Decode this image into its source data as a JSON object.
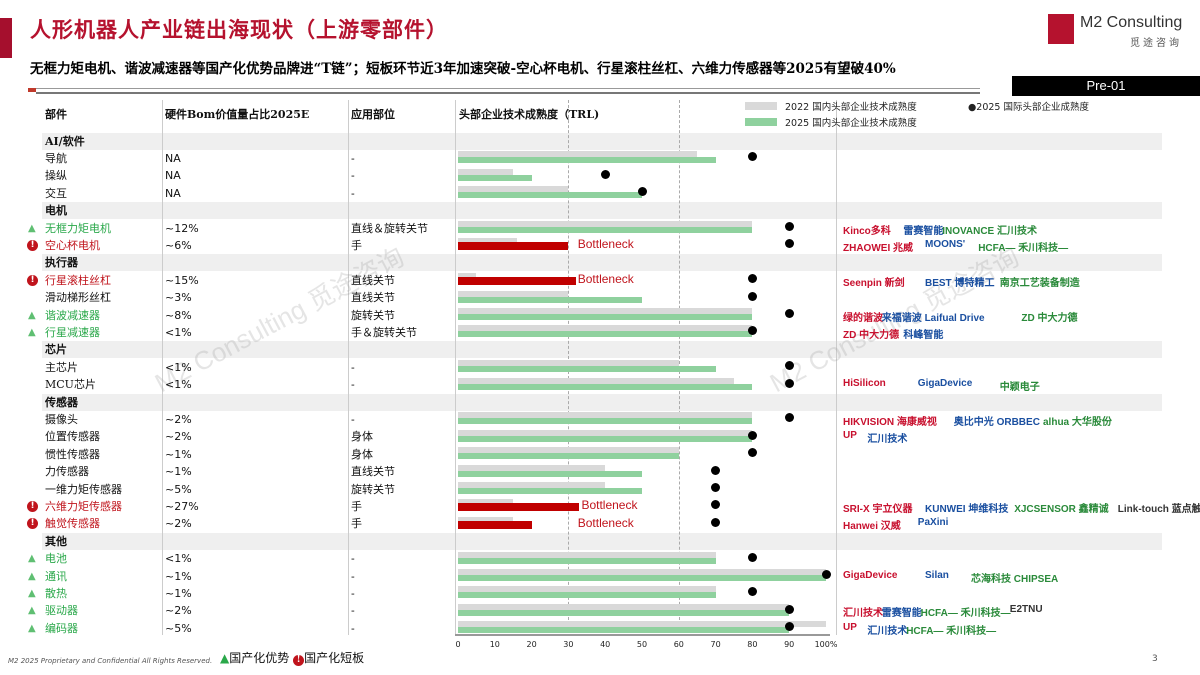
{
  "header": {
    "title": "人形机器人产业链出海现状（上游零部件）",
    "subtitle": "无框力矩电机、谐波减速器等国产化优势品牌进“T链”；短板环节近3年加速突破-空心杯电机、行星滚柱丝杠、六维力传感器等2025有望破40%",
    "brand_name": "M2 Consulting",
    "brand_cn": "觅途咨询",
    "slide_code": "Pre-01"
  },
  "table": {
    "columns": [
      "部件",
      "硬件Bom价值量占比2025E",
      "应用部位",
      "头部企业技术成熟度（TRL)"
    ]
  },
  "legend": {
    "gray": "2022 国内头部企业技术成熟度",
    "green": "2025 国内头部企业技术成熟度",
    "dot": "●2025 国际头部企业成熟度",
    "advantage": "国产化优势",
    "bottleneck": "国产化短板"
  },
  "colors": {
    "gray": "#d9d9d9",
    "green": "#8fd19e",
    "red": "#c00000",
    "dot": "#000000",
    "advantage": "#2aa84a",
    "bottleneck": "#c0141c",
    "brand": "#b5122e"
  },
  "bottleneck_label": "Bottleneck",
  "chart_data": {
    "type": "bar",
    "xlabel": "",
    "xlim": [
      0,
      100
    ],
    "x_ticks": [
      "0",
      "10",
      "20",
      "30",
      "40",
      "50",
      "60",
      "70",
      "80",
      "90",
      "100%"
    ],
    "gridlines": [
      30,
      60
    ]
  },
  "rows": [
    {
      "section": "AI/软件"
    },
    {
      "name": "导航",
      "bom": "NA",
      "pos": "-",
      "trl2022": 65,
      "trl2025": 70,
      "intl2025": 80
    },
    {
      "name": "操纵",
      "bom": "NA",
      "pos": "-",
      "trl2022": 15,
      "trl2025": 20,
      "intl2025": 40
    },
    {
      "name": "交互",
      "bom": "NA",
      "pos": "-",
      "trl2022": 30,
      "trl2025": 50,
      "intl2025": 50
    },
    {
      "section": "电机"
    },
    {
      "name": "无框力矩电机",
      "bom": "~12%",
      "pos": "直线＆旋转关节",
      "status": "advantage",
      "trl2022": 80,
      "trl2025": 80,
      "intl2025": 90,
      "logos": [
        "Kinco多科",
        "雷赛智能",
        "INOVANCE 汇川技术"
      ]
    },
    {
      "name": "空心杯电机",
      "bom": "~6%",
      "pos": "手",
      "status": "bottleneck",
      "trl2022": 16,
      "trl2025": 30,
      "intl2025": 90,
      "logos": [
        "ZHAOWEI 兆威",
        "MOONS'",
        "HCFA— 禾川科技—"
      ]
    },
    {
      "section": "执行器"
    },
    {
      "name": "行星滚柱丝杠",
      "bom": "~15%",
      "pos": "直线关节",
      "status": "bottleneck",
      "trl2022": 5,
      "trl2025": 32,
      "intl2025": 80,
      "logos": [
        "Seenpin 新剑",
        "BEST 博特精工",
        "南京工艺装备制造"
      ]
    },
    {
      "name": "滑动梯形丝杠",
      "bom": "~3%",
      "pos": "直线关节",
      "trl2022": 30,
      "trl2025": 50,
      "intl2025": 80
    },
    {
      "name": "谐波减速器",
      "bom": "~8%",
      "pos": "旋转关节",
      "status": "advantage",
      "trl2022": 80,
      "trl2025": 80,
      "intl2025": 90,
      "logos": [
        "绿的谐波",
        "来福谐波 Laifual Drive",
        "ZD 中大力德"
      ]
    },
    {
      "name": "行星减速器",
      "bom": "<1%",
      "pos": "手＆旋转关节",
      "status": "advantage",
      "trl2022": 80,
      "trl2025": 80,
      "intl2025": 80,
      "logos": [
        "ZD 中大力德",
        "科峰智能"
      ]
    },
    {
      "section": "芯片"
    },
    {
      "name": "主芯片",
      "bom": "<1%",
      "pos": "-",
      "trl2022": 60,
      "trl2025": 70,
      "intl2025": 90
    },
    {
      "name": "MCU芯片",
      "bom": "<1%",
      "pos": "-",
      "trl2022": 75,
      "trl2025": 80,
      "intl2025": 90,
      "logos": [
        "HiSilicon",
        "GigaDevice",
        "中颖电子"
      ]
    },
    {
      "section": "传感器"
    },
    {
      "name": "摄像头",
      "bom": "~2%",
      "pos": "-",
      "trl2022": 80,
      "trl2025": 80,
      "intl2025": 90,
      "logos": [
        "HIKVISION 海康威视",
        "奥比中光 ORBBEC",
        "alhua 大华股份"
      ]
    },
    {
      "name": "位置传感器",
      "bom": "~2%",
      "pos": "身体",
      "trl2022": 80,
      "trl2025": 80,
      "intl2025": 80,
      "logos": [
        "UP",
        "汇川技术"
      ]
    },
    {
      "name": "惯性传感器",
      "bom": "~1%",
      "pos": "身体",
      "trl2022": 60,
      "trl2025": 60,
      "intl2025": 80
    },
    {
      "name": "力传感器",
      "bom": "~1%",
      "pos": "直线关节",
      "trl2022": 40,
      "trl2025": 50,
      "intl2025": 70
    },
    {
      "name": "一维力矩传感器",
      "bom": "~5%",
      "pos": "旋转关节",
      "trl2022": 40,
      "trl2025": 50,
      "intl2025": 70
    },
    {
      "name": "六维力矩传感器",
      "bom": "~27%",
      "pos": "手",
      "status": "bottleneck",
      "trl2022": 15,
      "trl2025": 33,
      "intl2025": 70,
      "logos": [
        "SRI-X 宇立仪器",
        "KUNWEI 坤维科技",
        "XJCSENSOR 鑫精诚",
        "Link-touch 蓝点触控"
      ]
    },
    {
      "name": "触觉传感器",
      "bom": "~2%",
      "pos": "手",
      "status": "bottleneck",
      "trl2022": 15,
      "trl2025": 20,
      "intl2025": 70,
      "logos": [
        "Hanwei 汉威",
        "PaXini"
      ]
    },
    {
      "section": "其他"
    },
    {
      "name": "电池",
      "bom": "<1%",
      "pos": "-",
      "status": "advantage",
      "trl2022": 70,
      "trl2025": 70,
      "intl2025": 80
    },
    {
      "name": "通讯",
      "bom": "~1%",
      "pos": "-",
      "status": "advantage",
      "trl2022": 100,
      "trl2025": 100,
      "intl2025": 100,
      "logos": [
        "GigaDevice",
        "Silan",
        "芯海科技 CHIPSEA"
      ]
    },
    {
      "name": "散热",
      "bom": "~1%",
      "pos": "-",
      "status": "advantage",
      "trl2022": 70,
      "trl2025": 70,
      "intl2025": 80
    },
    {
      "name": "驱动器",
      "bom": "~2%",
      "pos": "-",
      "status": "advantage",
      "trl2022": 90,
      "trl2025": 90,
      "intl2025": 90,
      "logos": [
        "汇川技术",
        "雷赛智能",
        "HCFA— 禾川科技—",
        "E2TNU"
      ]
    },
    {
      "name": "编码器",
      "bom": "~5%",
      "pos": "-",
      "status": "advantage",
      "trl2022": 100,
      "trl2025": 90,
      "intl2025": 90,
      "logos": [
        "UP",
        "汇川技术",
        "HCFA— 禾川科技—"
      ]
    }
  ],
  "footer": "M2 2025 Proprietary and Confidential All Rights Reserved.",
  "page_number": "3"
}
